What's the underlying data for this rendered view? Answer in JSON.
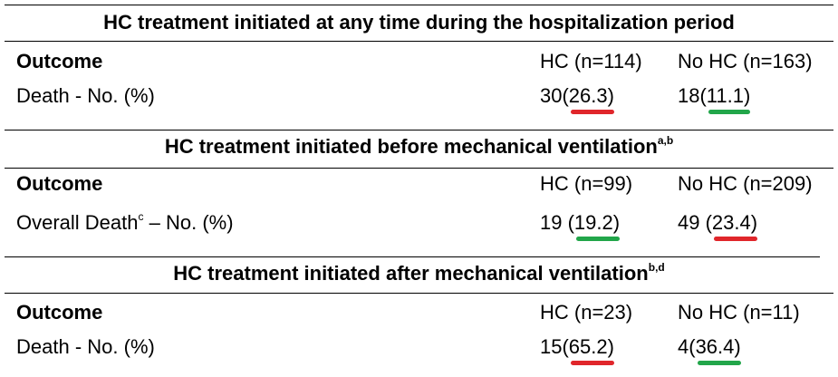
{
  "sections": [
    {
      "title": "HC treatment initiated at any time during the hospitalization period",
      "title_sup": null,
      "header": {
        "outcome": "Outcome",
        "hc": "HC (n=114)",
        "no_hc": "No HC (n=163)"
      },
      "row": {
        "label": "Death",
        "label_sup": null,
        "label_rest": " - No. (%)",
        "hc_count": "30(",
        "hc_pct": "26.3)",
        "no_hc_count": "18(",
        "no_hc_pct": "11.1)"
      }
    },
    {
      "title": "HC treatment initiated before mechanical ventilation",
      "title_sup": "a,b",
      "header": {
        "outcome": "Outcome",
        "hc": "HC (n=99)",
        "no_hc": "No HC (n=209)"
      },
      "row": {
        "label": "Overall Death",
        "label_sup": "c",
        "label_rest": " – No. (%)",
        "hc_count": "19 (",
        "hc_pct": "19.2)",
        "no_hc_count": "49 (",
        "no_hc_pct": "23.4)"
      }
    },
    {
      "title": "HC treatment initiated after mechanical ventilation",
      "title_sup": "b,d",
      "header": {
        "outcome": "Outcome",
        "hc": "HC (n=23)",
        "no_hc": "No HC (n=11)"
      },
      "row": {
        "label": "Death",
        "label_sup": null,
        "label_rest": " - No. (%)",
        "hc_count": "15(",
        "hc_pct": "65.2)",
        "no_hc_count": "4(",
        "no_hc_pct": "36.4)"
      }
    }
  ]
}
